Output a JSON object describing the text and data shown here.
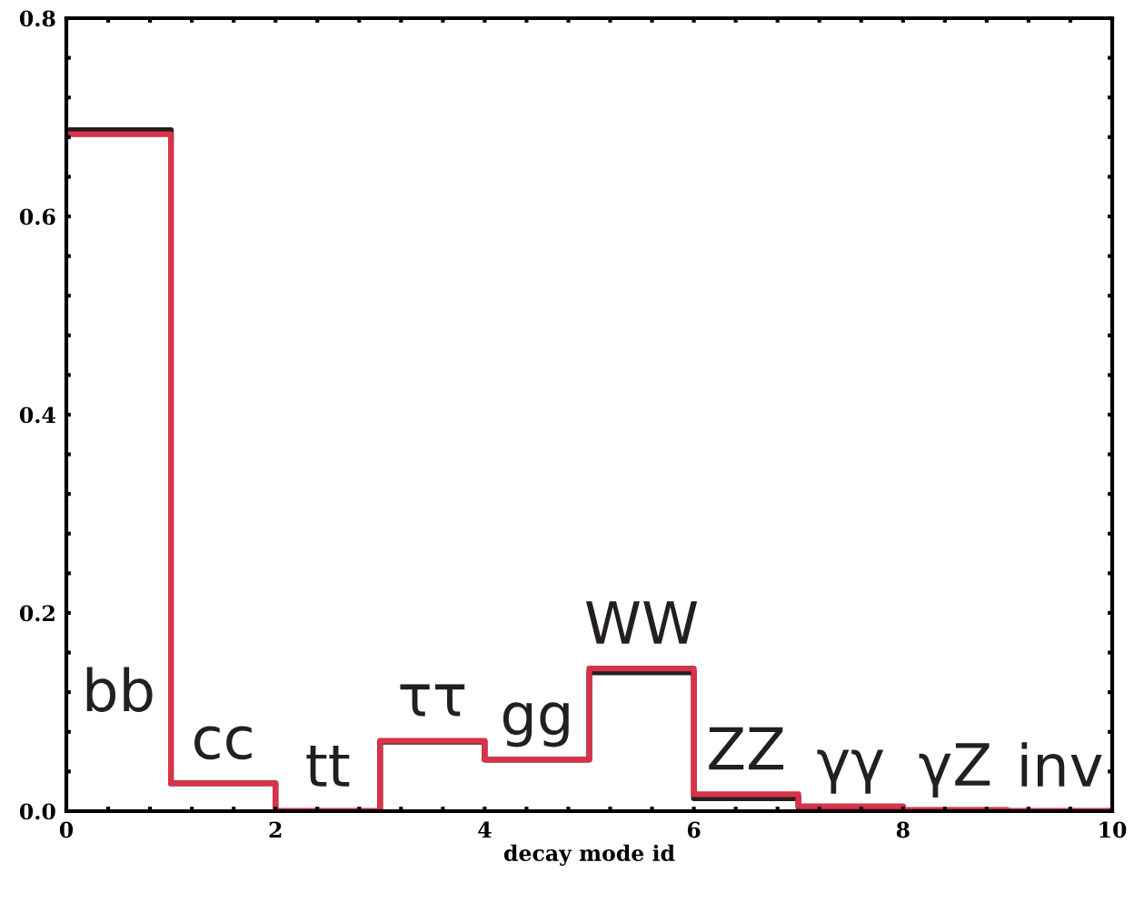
{
  "chart_data": {
    "type": "histogram",
    "xlabel": "decay mode id",
    "bins": [
      0,
      1,
      2,
      3,
      4,
      5,
      6,
      7,
      8,
      9,
      10
    ],
    "series": [
      {
        "color": "#231f20",
        "values": [
          0.687,
          0.028,
          0.0,
          0.07,
          0.052,
          0.14,
          0.013,
          0.004,
          0.001,
          0.0
        ]
      },
      {
        "color": "#d7334a",
        "values": [
          0.683,
          0.028,
          0.0,
          0.071,
          0.052,
          0.144,
          0.017,
          0.005,
          0.001,
          0.0
        ]
      }
    ],
    "xlim": [
      0,
      10
    ],
    "ylim": [
      0,
      0.8
    ],
    "xticks": [
      0,
      {
        "value": 0.4,
        "label": null
      },
      {
        "value": 0.8,
        "label": null
      },
      {
        "value": 1.2,
        "label": null
      },
      {
        "value": 1.6,
        "label": null
      },
      2,
      {
        "value": 2.4,
        "label": null
      },
      {
        "value": 2.8,
        "label": null
      },
      {
        "value": 3.2,
        "label": null
      },
      {
        "value": 3.6,
        "label": null
      },
      4,
      {
        "value": 4.4,
        "label": null
      },
      {
        "value": 4.8,
        "label": null
      },
      {
        "value": 5.2,
        "label": null
      },
      {
        "value": 5.6,
        "label": null
      },
      6,
      {
        "value": 6.4,
        "label": null
      },
      {
        "value": 6.8,
        "label": null
      },
      {
        "value": 7.2,
        "label": null
      },
      {
        "value": 7.6,
        "label": null
      },
      8,
      {
        "value": 8.4,
        "label": null
      },
      {
        "value": 8.8,
        "label": null
      },
      {
        "value": 9.2,
        "label": null
      },
      {
        "value": 9.6,
        "label": null
      },
      10
    ],
    "yticks": [
      {
        "value": 0,
        "label": "0.0"
      },
      {
        "value": 0.04,
        "label": null
      },
      {
        "value": 0.08,
        "label": null
      },
      {
        "value": 0.12,
        "label": null
      },
      {
        "value": 0.16,
        "label": null
      },
      0.2,
      {
        "value": 0.24,
        "label": null
      },
      {
        "value": 0.28,
        "label": null
      },
      {
        "value": 0.32,
        "label": null
      },
      {
        "value": 0.36,
        "label": null
      },
      0.4,
      {
        "value": 0.44,
        "label": null
      },
      {
        "value": 0.48,
        "label": null
      },
      {
        "value": 0.52,
        "label": null
      },
      {
        "value": 0.56,
        "label": null
      },
      0.6,
      {
        "value": 0.64,
        "label": null
      },
      {
        "value": 0.68,
        "label": null
      },
      {
        "value": 0.72,
        "label": null
      },
      {
        "value": 0.76,
        "label": null
      },
      0.8
    ],
    "annotations": [
      "bb",
      "cc",
      "tt",
      "ττ",
      "gg",
      "WW",
      "ZZ",
      "γγ",
      "γZ",
      "inv"
    ]
  }
}
